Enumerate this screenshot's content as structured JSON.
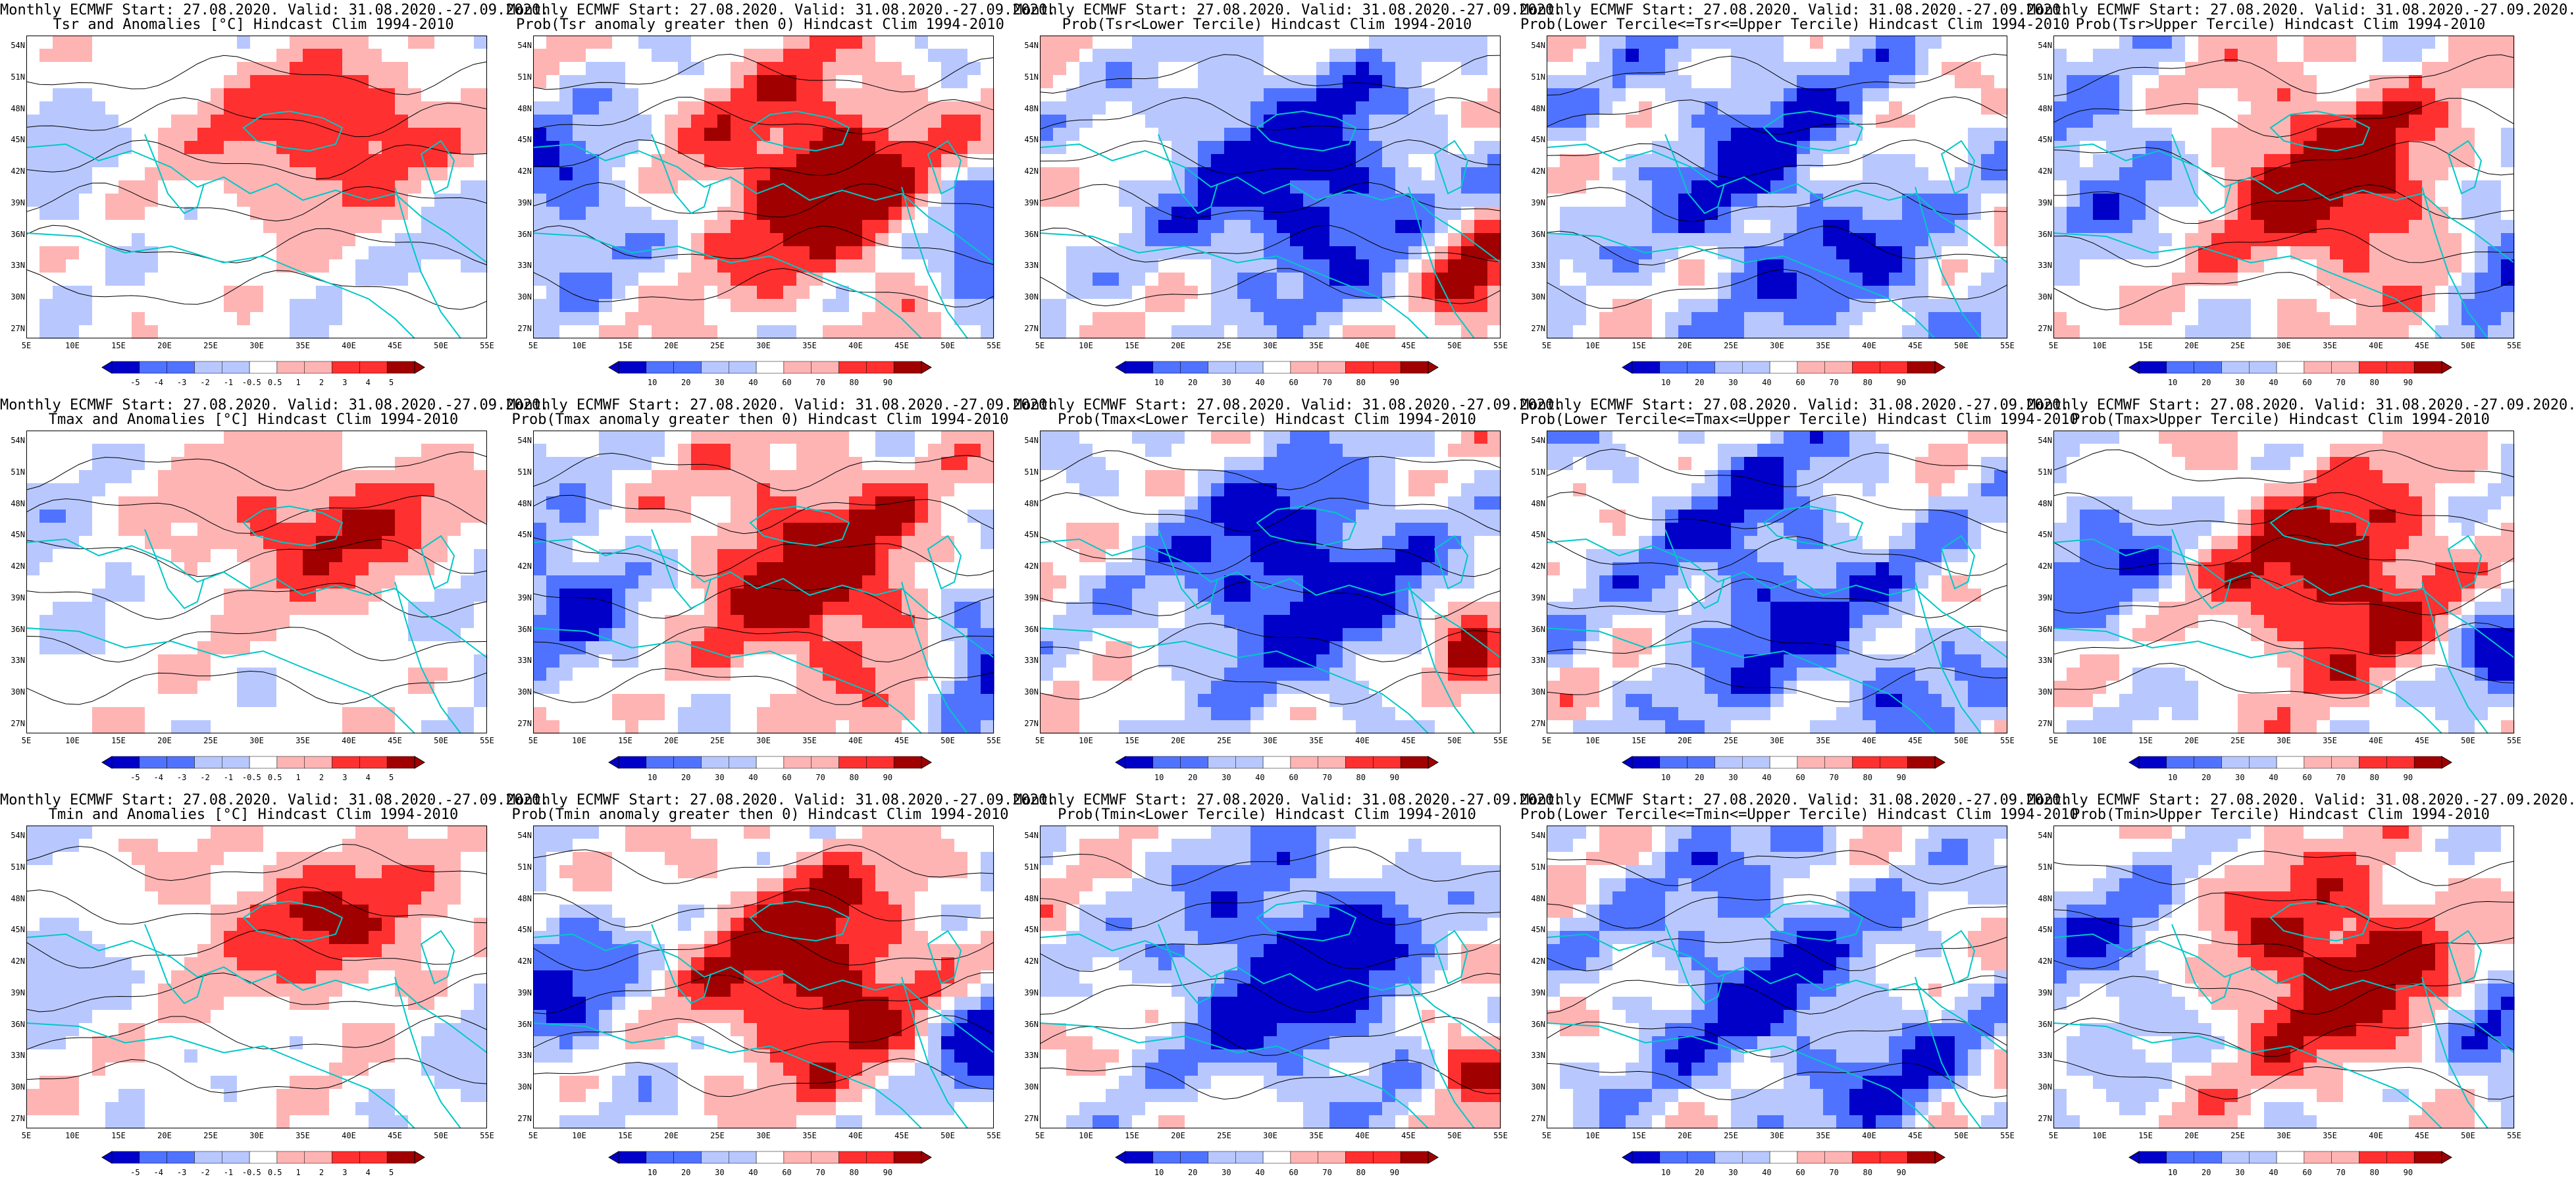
{
  "colors": {
    "blue_dark": "#0000c8",
    "blue_mid": "#5073ff",
    "blue_light": "#b8c8ff",
    "white": "#ffffff",
    "red_light": "#ffb4b4",
    "red_mid": "#ff3030",
    "red_dark": "#a00000",
    "coast_line": "#00c8c8",
    "contour_line": "#000000"
  },
  "map": {
    "lat_labels": [
      "54N",
      "51N",
      "48N",
      "45N",
      "42N",
      "39N",
      "36N",
      "33N",
      "30N",
      "27N"
    ],
    "lon_labels": [
      "5E",
      "10E",
      "15E",
      "20E",
      "25E",
      "30E",
      "35E",
      "40E",
      "45E",
      "50E",
      "55E"
    ]
  },
  "colorbars": {
    "anomaly": [
      "-5",
      "-4",
      "-3",
      "-2",
      "-1",
      "-0.5",
      "0.5",
      "1",
      "2",
      "3",
      "4",
      "5"
    ],
    "prob": [
      "10",
      "20",
      "30",
      "40",
      "60",
      "70",
      "80",
      "90"
    ]
  },
  "panels": [
    {
      "row": 0,
      "col": 0,
      "title1": "Monthly ECMWF Start: 27.08.2020. Valid: 31.08.2020.-27.09.2020.",
      "title2": "Tsr and Anomalies [°C] Hindcast Clim 1994-2010",
      "colorbar": "anomaly",
      "pattern": "anomaly"
    },
    {
      "row": 0,
      "col": 1,
      "title1": "Monthly ECMWF Start: 27.08.2020. Valid: 31.08.2020.-27.09.2020.",
      "title2": "Prob(Tsr anomaly greater then 0) Hindcast Clim 1994-2010",
      "colorbar": "prob",
      "pattern": "prob_gt0"
    },
    {
      "row": 0,
      "col": 2,
      "title1": "Monthly ECMWF Start: 27.08.2020. Valid: 31.08.2020.-27.09.2020.",
      "title2": "Prob(Tsr<Lower Tercile) Hindcast Clim 1994-2010",
      "colorbar": "prob",
      "pattern": "prob_lower"
    },
    {
      "row": 0,
      "col": 3,
      "title1": "Monthly ECMWF Start: 27.08.2020. Valid: 31.08.2020.-27.09.2020.",
      "title2": "Prob(Lower Tercile<=Tsr<=Upper Tercile) Hindcast Clim 1994-2010",
      "colorbar": "prob",
      "pattern": "prob_middle"
    },
    {
      "row": 0,
      "col": 4,
      "title1": "Monthly ECMWF Start: 27.08.2020. Valid: 31.08.2020.-27.09.2020.",
      "title2": "Prob(Tsr>Upper Tercile) Hindcast Clim 1994-2010",
      "colorbar": "prob",
      "pattern": "prob_upper"
    },
    {
      "row": 1,
      "col": 0,
      "title1": "Monthly ECMWF Start: 27.08.2020. Valid: 31.08.2020.-27.09.2020.",
      "title2": "Tmax and Anomalies [°C] Hindcast Clim 1994-2010",
      "colorbar": "anomaly",
      "pattern": "anomaly"
    },
    {
      "row": 1,
      "col": 1,
      "title1": "Monthly ECMWF Start: 27.08.2020. Valid: 31.08.2020.-27.09.2020.",
      "title2": "Prob(Tmax anomaly greater then 0) Hindcast Clim 1994-2010",
      "colorbar": "prob",
      "pattern": "prob_gt0"
    },
    {
      "row": 1,
      "col": 2,
      "title1": "Monthly ECMWF Start: 27.08.2020. Valid: 31.08.2020.-27.09.2020.",
      "title2": "Prob(Tmax<Lower Tercile) Hindcast Clim 1994-2010",
      "colorbar": "prob",
      "pattern": "prob_lower"
    },
    {
      "row": 1,
      "col": 3,
      "title1": "Monthly ECMWF Start: 27.08.2020. Valid: 31.08.2020.-27.09.2020.",
      "title2": "Prob(Lower Tercile<=Tmax<=Upper Tercile) Hindcast Clim 1994-2010",
      "colorbar": "prob",
      "pattern": "prob_middle"
    },
    {
      "row": 1,
      "col": 4,
      "title1": "Monthly ECMWF Start: 27.08.2020. Valid: 31.08.2020.-27.09.2020.",
      "title2": "Prob(Tmax>Upper Tercile) Hindcast Clim 1994-2010",
      "colorbar": "prob",
      "pattern": "prob_upper"
    },
    {
      "row": 2,
      "col": 0,
      "title1": "Monthly ECMWF Start: 27.08.2020. Valid: 31.08.2020.-27.09.2020.",
      "title2": "Tmin and Anomalies [°C] Hindcast Clim 1994-2010",
      "colorbar": "anomaly",
      "pattern": "anomaly"
    },
    {
      "row": 2,
      "col": 1,
      "title1": "Monthly ECMWF Start: 27.08.2020. Valid: 31.08.2020.-27.09.2020.",
      "title2": "Prob(Tmin anomaly greater then 0) Hindcast Clim 1994-2010",
      "colorbar": "prob",
      "pattern": "prob_gt0"
    },
    {
      "row": 2,
      "col": 2,
      "title1": "Monthly ECMWF Start: 27.08.2020. Valid: 31.08.2020.-27.09.2020.",
      "title2": "Prob(Tmin<Lower Tercile) Hindcast Clim 1994-2010",
      "colorbar": "prob",
      "pattern": "prob_lower"
    },
    {
      "row": 2,
      "col": 3,
      "title1": "Monthly ECMWF Start: 27.08.2020. Valid: 31.08.2020.-27.09.2020.",
      "title2": "Prob(Lower Tercile<=Tmin<=Upper Tercile) Hindcast Clim 1994-2010",
      "colorbar": "prob",
      "pattern": "prob_middle"
    },
    {
      "row": 2,
      "col": 4,
      "title1": "Monthly ECMWF Start: 27.08.2020. Valid: 31.08.2020.-27.09.2020.",
      "title2": "Prob(Tmin>Upper Tercile) Hindcast Clim 1994-2010",
      "colorbar": "prob",
      "pattern": "prob_upper"
    }
  ]
}
